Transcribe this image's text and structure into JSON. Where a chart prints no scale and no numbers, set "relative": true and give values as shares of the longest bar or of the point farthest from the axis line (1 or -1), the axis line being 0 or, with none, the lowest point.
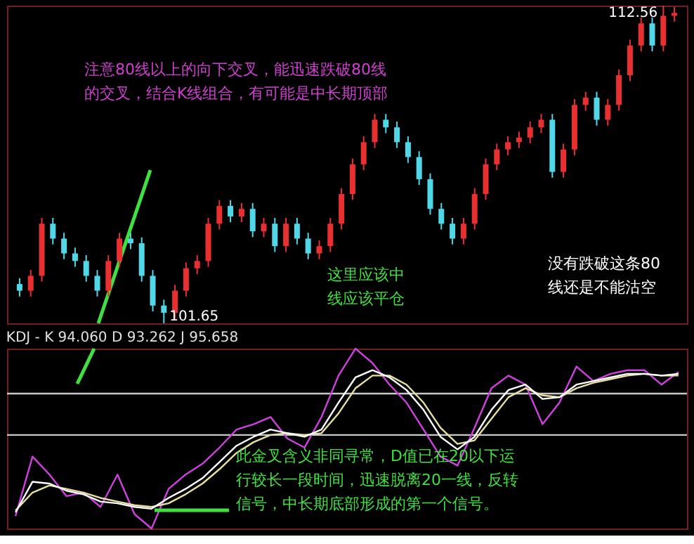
{
  "chart_data": [
    {
      "type": "candlestick",
      "categories": [
        null,
        null,
        null,
        null,
        null,
        null,
        null,
        null,
        null,
        null,
        null,
        null,
        null,
        null,
        null,
        null,
        null,
        null,
        null,
        null,
        null,
        null,
        null,
        null,
        null,
        null,
        null,
        null,
        null,
        null,
        null,
        null,
        null,
        null,
        null,
        null,
        null,
        null,
        null,
        null,
        null,
        null,
        null,
        null,
        null,
        null,
        null,
        null,
        null,
        null,
        null,
        null,
        null,
        null,
        null,
        null,
        null,
        null,
        null,
        null
      ],
      "ohlc": [
        [
          103.0,
          103.2,
          102.57,
          102.77
        ],
        [
          102.77,
          103.48,
          102.57,
          103.28
        ],
        [
          103.28,
          105.27,
          103.08,
          105.07
        ],
        [
          105.07,
          105.27,
          104.36,
          104.56
        ],
        [
          104.56,
          104.76,
          103.85,
          104.05
        ],
        [
          104.05,
          104.25,
          103.59,
          103.79
        ],
        [
          103.79,
          103.99,
          103.08,
          103.28
        ],
        [
          103.28,
          103.48,
          102.57,
          102.77
        ],
        [
          102.77,
          103.99,
          102.57,
          103.79
        ],
        [
          103.79,
          104.76,
          103.59,
          104.56
        ],
        [
          104.56,
          104.76,
          104.2,
          104.4
        ],
        [
          104.4,
          104.6,
          103.08,
          103.28
        ],
        [
          103.28,
          103.48,
          102.06,
          102.26
        ],
        [
          102.26,
          102.46,
          101.65,
          102.01
        ],
        [
          102.01,
          102.97,
          101.81,
          102.77
        ],
        [
          102.77,
          103.74,
          102.57,
          103.54
        ],
        [
          103.54,
          103.99,
          103.34,
          103.79
        ],
        [
          103.79,
          105.27,
          103.59,
          105.07
        ],
        [
          105.07,
          105.88,
          104.87,
          105.68
        ],
        [
          105.68,
          105.88,
          105.12,
          105.32
        ],
        [
          105.32,
          105.78,
          105.12,
          105.58
        ],
        [
          105.58,
          105.78,
          104.61,
          104.81
        ],
        [
          104.81,
          105.27,
          104.61,
          105.07
        ],
        [
          105.07,
          105.27,
          104.1,
          104.3
        ],
        [
          104.3,
          105.27,
          104.1,
          105.07
        ],
        [
          105.07,
          105.27,
          104.36,
          104.56
        ],
        [
          104.56,
          104.76,
          103.85,
          104.05
        ],
        [
          104.05,
          104.5,
          103.85,
          104.3
        ],
        [
          104.3,
          105.27,
          104.1,
          105.07
        ],
        [
          105.07,
          106.29,
          104.87,
          106.09
        ],
        [
          106.09,
          107.31,
          105.89,
          107.11
        ],
        [
          107.11,
          108.07,
          106.91,
          107.87
        ],
        [
          107.87,
          108.84,
          107.67,
          108.64
        ],
        [
          108.64,
          108.84,
          108.18,
          108.38
        ],
        [
          108.38,
          108.58,
          107.67,
          107.87
        ],
        [
          107.87,
          108.07,
          107.16,
          107.36
        ],
        [
          107.36,
          107.56,
          106.4,
          106.6
        ],
        [
          106.6,
          106.8,
          105.38,
          105.58
        ],
        [
          105.58,
          105.78,
          104.87,
          105.07
        ],
        [
          105.07,
          105.27,
          104.36,
          104.56
        ],
        [
          104.56,
          105.27,
          104.36,
          105.07
        ],
        [
          105.07,
          106.29,
          104.87,
          106.09
        ],
        [
          106.09,
          107.31,
          105.89,
          107.11
        ],
        [
          107.11,
          107.82,
          106.91,
          107.62
        ],
        [
          107.62,
          108.07,
          107.42,
          107.87
        ],
        [
          107.87,
          108.23,
          107.67,
          108.03
        ],
        [
          108.03,
          108.58,
          107.83,
          108.38
        ],
        [
          108.38,
          108.84,
          108.18,
          108.64
        ],
        [
          108.64,
          108.84,
          106.65,
          106.85
        ],
        [
          106.85,
          107.82,
          106.65,
          107.62
        ],
        [
          107.62,
          109.35,
          107.42,
          109.15
        ],
        [
          109.15,
          109.6,
          108.95,
          109.4
        ],
        [
          109.4,
          109.6,
          108.44,
          108.64
        ],
        [
          108.64,
          109.35,
          108.44,
          109.15
        ],
        [
          109.15,
          110.37,
          108.95,
          110.17
        ],
        [
          110.17,
          111.39,
          109.97,
          111.19
        ],
        [
          111.19,
          112.15,
          110.99,
          111.95
        ],
        [
          111.95,
          112.15,
          110.99,
          111.19
        ],
        [
          111.19,
          112.56,
          110.99,
          112.21
        ],
        [
          112.21,
          112.51,
          112.01,
          112.31
        ]
      ],
      "colors": [
        "#50d8e8",
        "#e83030",
        "#e83030",
        "#50d8e8",
        "#50d8e8",
        "#50d8e8",
        "#50d8e8",
        "#50d8e8",
        "#e83030",
        "#e83030",
        "#50d8e8",
        "#50d8e8",
        "#50d8e8",
        "#50d8e8",
        "#e83030",
        "#e83030",
        "#e83030",
        "#e83030",
        "#e83030",
        "#50d8e8",
        "#e83030",
        "#50d8e8",
        "#e83030",
        "#50d8e8",
        "#e83030",
        "#50d8e8",
        "#50d8e8",
        "#e83030",
        "#e83030",
        "#e83030",
        "#e83030",
        "#e83030",
        "#e83030",
        "#50d8e8",
        "#50d8e8",
        "#50d8e8",
        "#50d8e8",
        "#50d8e8",
        "#50d8e8",
        "#50d8e8",
        "#e83030",
        "#e83030",
        "#e83030",
        "#e83030",
        "#e83030",
        "#e83030",
        "#e83030",
        "#e83030",
        "#50d8e8",
        "#e83030",
        "#e83030",
        "#e83030",
        "#50d8e8",
        "#e83030",
        "#e83030",
        "#e83030",
        "#e83030",
        "#50d8e8",
        "#e83030",
        "#e83030"
      ],
      "annotations": [
        "112.56",
        "101.65",
        "注意80线以上的向下交叉，能迅速跌破80线的交叉，结合K线组合，有可能是中长期顶部",
        "这里应该中线应该平仓",
        "没有跌破这条80线还是不能沽空"
      ]
    },
    {
      "type": "line",
      "title": "KDJ - K 94.060 D 93.262 J 95.658",
      "relative": true,
      "categories": [
        null,
        null,
        null,
        null,
        null,
        null,
        null,
        null,
        null,
        null,
        null,
        null,
        null,
        null,
        null,
        null,
        null,
        null,
        null,
        null,
        null,
        null,
        null,
        null,
        null,
        null,
        null,
        null,
        null,
        null,
        null,
        null,
        null,
        null,
        null,
        null,
        null,
        null,
        null,
        null
      ],
      "series": [
        {
          "color": "#d040e0",
          "values": [
            0.07,
            0.4,
            0.3,
            0.18,
            0.2,
            0.12,
            0.3,
            0.08,
            0.0,
            0.22,
            0.3,
            0.36,
            0.45,
            0.55,
            0.58,
            0.62,
            0.5,
            0.45,
            0.62,
            0.85,
            1.0,
            0.92,
            0.8,
            0.7,
            0.55,
            0.4,
            0.35,
            0.56,
            0.78,
            0.85,
            0.8,
            0.58,
            0.7,
            0.9,
            0.82,
            0.86,
            0.88,
            0.88,
            0.8,
            0.87
          ]
        },
        {
          "color": "#e8e0a0",
          "values": [
            0.1,
            0.2,
            0.24,
            0.22,
            0.2,
            0.17,
            0.15,
            0.13,
            0.12,
            0.14,
            0.19,
            0.25,
            0.33,
            0.42,
            0.48,
            0.52,
            0.53,
            0.52,
            0.53,
            0.64,
            0.78,
            0.85,
            0.85,
            0.8,
            0.7,
            0.56,
            0.47,
            0.49,
            0.61,
            0.73,
            0.78,
            0.74,
            0.73,
            0.78,
            0.81,
            0.83,
            0.85,
            0.86,
            0.85,
            0.85
          ]
        },
        {
          "color": "#ffffff",
          "values": [
            0.09,
            0.26,
            0.25,
            0.21,
            0.19,
            0.15,
            0.14,
            0.12,
            0.11,
            0.17,
            0.22,
            0.28,
            0.37,
            0.46,
            0.51,
            0.55,
            0.53,
            0.51,
            0.55,
            0.7,
            0.84,
            0.88,
            0.84,
            0.77,
            0.66,
            0.51,
            0.44,
            0.51,
            0.66,
            0.77,
            0.8,
            0.72,
            0.73,
            0.8,
            0.82,
            0.84,
            0.86,
            0.86,
            0.85,
            0.86
          ]
        }
      ],
      "ref_lines": [
        {
          "axis": "y",
          "value": 0.75,
          "color": "#c8c8c8"
        },
        {
          "axis": "y",
          "value": 0.52,
          "color": "#c8c8c8"
        }
      ],
      "annotations": [
        "此金叉含义非同寻常，D值已在20以下运行较长一段时间，迅速脱离20一线，反转信号，中长期底部形成的第一个信号。"
      ]
    }
  ]
}
